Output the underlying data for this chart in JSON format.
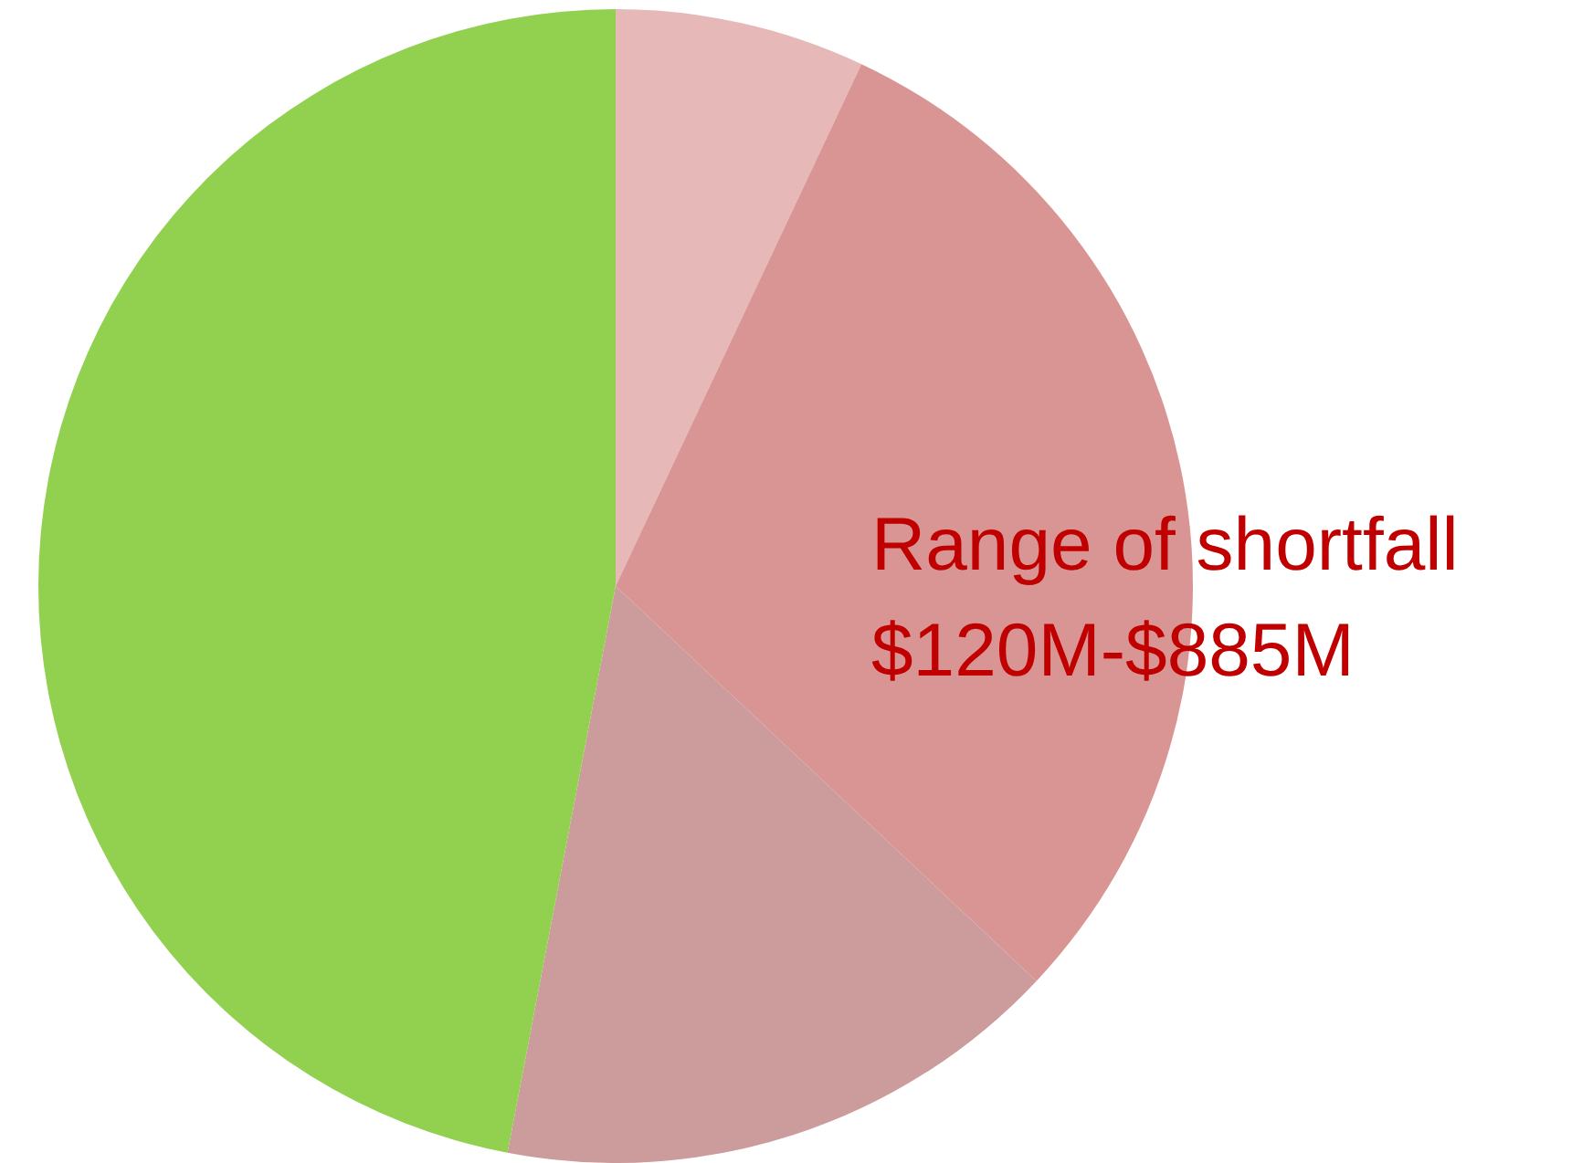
{
  "chart_data": {
    "type": "pie",
    "categories": [
      null,
      null,
      null,
      null
    ],
    "values": [
      7,
      30,
      16,
      47
    ],
    "colors": [
      "#e6b8b8",
      "#d99594",
      "#cc9b9c",
      "#92d050"
    ],
    "annotations": [
      "Range of shortfall",
      "$120M-$885M"
    ]
  }
}
